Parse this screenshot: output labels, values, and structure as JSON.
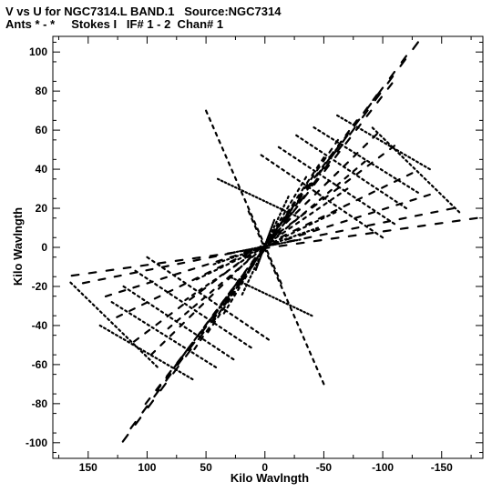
{
  "title_line1": "V vs U for NGC7314.L BAND.1   Source:NGC7314",
  "title_line2": "Ants * - *     Stokes I   IF# 1 - 2  Chan# 1",
  "chart_data": {
    "type": "scatter",
    "xlabel": "Kilo Wavlngth",
    "ylabel": "Kilo Wavlngth",
    "xlim": [
      180,
      -185
    ],
    "ylim": [
      -108,
      108
    ],
    "x_reversed": true,
    "x_ticks": [
      150,
      100,
      50,
      0,
      -50,
      -100,
      -150
    ],
    "x_tick_labels": [
      "150",
      "100",
      "50",
      "0",
      "-50",
      "-100",
      "-150"
    ],
    "y_ticks": [
      100,
      80,
      60,
      40,
      20,
      0,
      -20,
      -40,
      -60,
      -80,
      -100
    ],
    "y_tick_labels": [
      "100",
      "80",
      "60",
      "40",
      "20",
      "0",
      "-20",
      "-40",
      "-60",
      "-80",
      "-100"
    ],
    "grid": false,
    "marker": "short dashes",
    "tracks": [
      {
        "from": [
          -130,
          105
        ],
        "to": [
          125,
          -103
        ]
      },
      {
        "from": [
          -120,
          98
        ],
        "to": [
          118,
          -96
        ]
      },
      {
        "from": [
          -108,
          84
        ],
        "to": [
          105,
          -83
        ]
      },
      {
        "from": [
          -95,
          78
        ],
        "to": [
          95,
          -76
        ]
      },
      {
        "from": [
          -78,
          65
        ],
        "to": [
          80,
          -64
        ]
      },
      {
        "from": [
          -62,
          55
        ],
        "to": [
          62,
          -54
        ]
      },
      {
        "from": [
          -50,
          46
        ],
        "to": [
          50,
          -45
        ]
      },
      {
        "from": [
          -35,
          36
        ],
        "to": [
          36,
          -35
        ]
      },
      {
        "from": [
          -20,
          26
        ],
        "to": [
          20,
          -25
        ]
      },
      {
        "from": [
          -8,
          14
        ],
        "to": [
          8,
          -12
        ]
      },
      {
        "from": [
          -180,
          15
        ],
        "to": [
          170,
          -15
        ]
      },
      {
        "from": [
          -160,
          20
        ],
        "to": [
          160,
          -19
        ]
      },
      {
        "from": [
          -140,
          27
        ],
        "to": [
          140,
          -26
        ]
      },
      {
        "from": [
          -125,
          38
        ],
        "to": [
          130,
          -37
        ]
      },
      {
        "from": [
          -110,
          52
        ],
        "to": [
          115,
          -50
        ]
      },
      {
        "from": [
          -95,
          58
        ],
        "to": [
          100,
          -57
        ]
      },
      {
        "from": [
          -85,
          44
        ],
        "to": [
          85,
          -43
        ]
      },
      {
        "from": [
          -70,
          30
        ],
        "to": [
          70,
          -28
        ]
      },
      {
        "from": [
          -60,
          18
        ],
        "to": [
          60,
          -17
        ]
      },
      {
        "from": [
          -45,
          10
        ],
        "to": [
          45,
          -9
        ]
      },
      {
        "from": [
          -30,
          4
        ],
        "to": [
          30,
          -3
        ]
      },
      {
        "from": [
          -140,
          40
        ],
        "to": [
          -60,
          68
        ]
      },
      {
        "from": [
          -130,
          28
        ],
        "to": [
          -40,
          62
        ]
      },
      {
        "from": [
          -120,
          20
        ],
        "to": [
          -25,
          58
        ]
      },
      {
        "from": [
          -110,
          12
        ],
        "to": [
          -10,
          52
        ]
      },
      {
        "from": [
          -100,
          5
        ],
        "to": [
          5,
          48
        ]
      },
      {
        "from": [
          140,
          -40
        ],
        "to": [
          60,
          -68
        ]
      },
      {
        "from": [
          130,
          -28
        ],
        "to": [
          40,
          -62
        ]
      },
      {
        "from": [
          120,
          -20
        ],
        "to": [
          25,
          -58
        ]
      },
      {
        "from": [
          110,
          -12
        ],
        "to": [
          10,
          -52
        ]
      },
      {
        "from": [
          100,
          -5
        ],
        "to": [
          -5,
          -48
        ]
      },
      {
        "from": [
          -165,
          18
        ],
        "to": [
          -90,
          62
        ]
      },
      {
        "from": [
          165,
          -18
        ],
        "to": [
          90,
          -62
        ]
      },
      {
        "from": [
          50,
          70
        ],
        "to": [
          -15,
          -20
        ]
      },
      {
        "from": [
          -50,
          -70
        ],
        "to": [
          15,
          20
        ]
      },
      {
        "from": [
          40,
          35
        ],
        "to": [
          -30,
          15
        ]
      },
      {
        "from": [
          -40,
          -35
        ],
        "to": [
          30,
          -15
        ]
      }
    ]
  }
}
